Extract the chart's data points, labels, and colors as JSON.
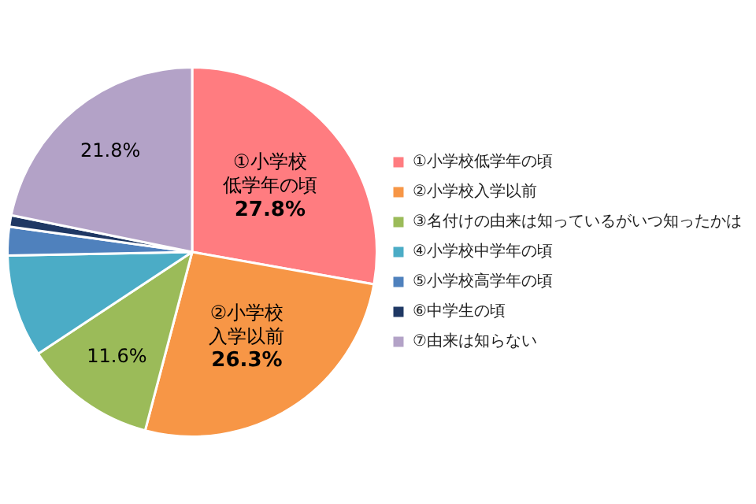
{
  "chart_data": {
    "type": "pie",
    "categories": [
      "①小学校低学年の頃",
      "②小学校入学以前",
      "③名付けの由来は知っているがいつ知ったかは",
      "④小学校中学年の頃",
      "⑤小学校高学年の頃",
      "⑥中学生の頃",
      "⑦由来は知らない"
    ],
    "values": [
      27.8,
      26.3,
      11.6,
      9.0,
      2.5,
      1.0,
      21.8
    ],
    "colors": [
      "#ff7c80",
      "#f79646",
      "#9bbb59",
      "#4bacc6",
      "#4f81bd",
      "#1f3864",
      "#b3a2c7"
    ],
    "value_labels": [
      "①小学校低学年の頃27.8%",
      "②小学校入学以前26.3%",
      "11.6%",
      null,
      null,
      null,
      "21.8%"
    ],
    "legend": "right"
  }
}
